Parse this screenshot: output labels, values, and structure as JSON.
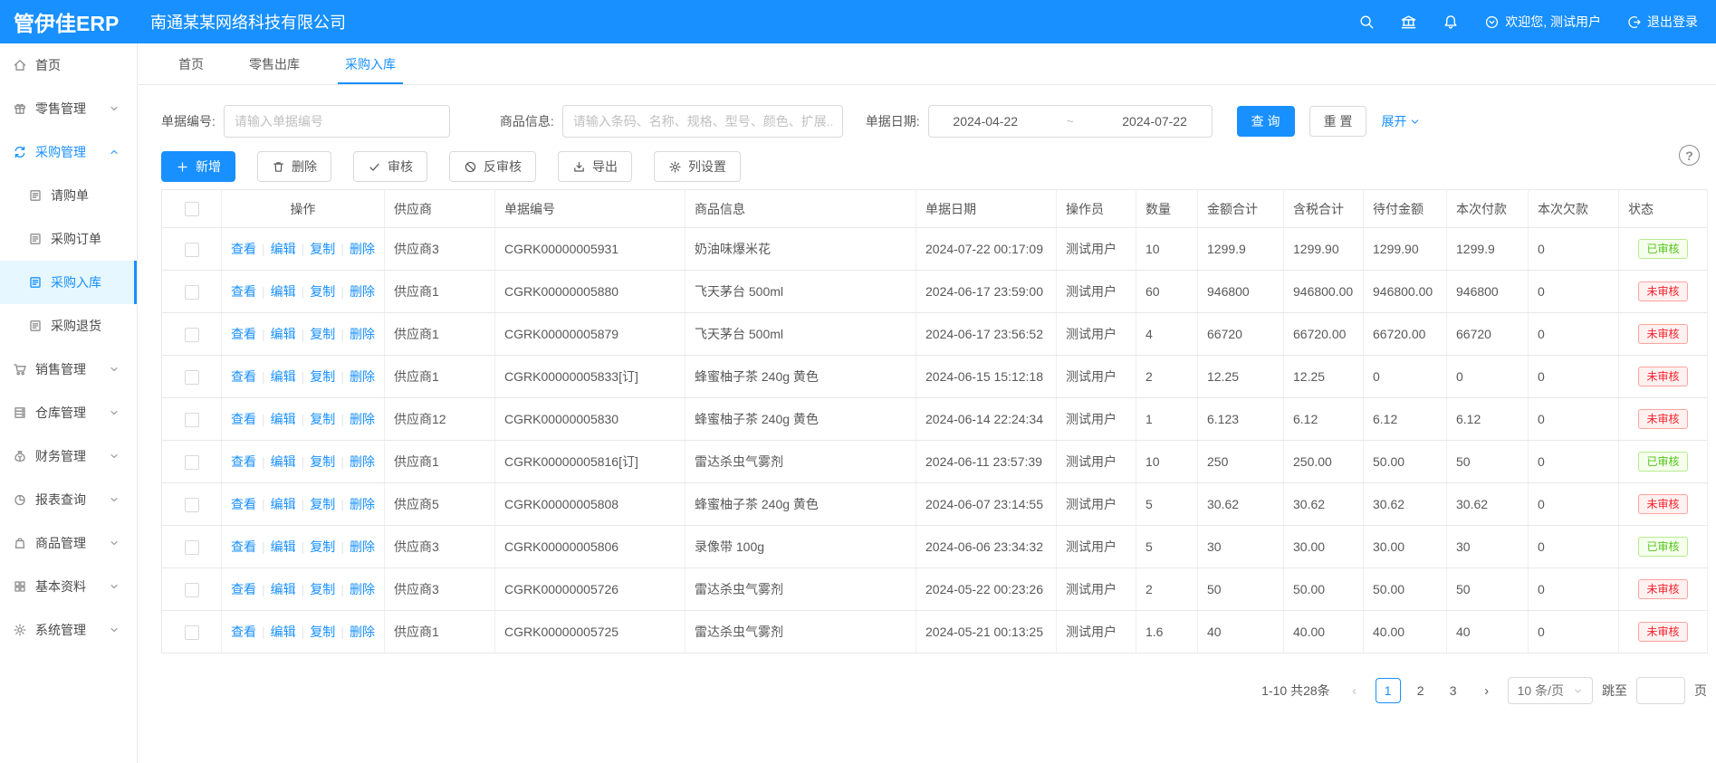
{
  "app": {
    "logo": "管伊佳ERP",
    "company": "南通某某网络科技有限公司",
    "welcome": "欢迎您, 测试用户",
    "logout": "退出登录",
    "help": "?"
  },
  "header_icons": [
    "search",
    "bank",
    "bell"
  ],
  "tabs": [
    {
      "label": "首页",
      "active": false
    },
    {
      "label": "零售出库",
      "active": false
    },
    {
      "label": "采购入库",
      "active": true
    }
  ],
  "sidebar": {
    "items": [
      {
        "label": "首页",
        "icon": "home",
        "type": "top"
      },
      {
        "label": "零售管理",
        "icon": "gift",
        "type": "top",
        "chevron": "down"
      },
      {
        "label": "采购管理",
        "icon": "sync",
        "type": "top",
        "chevron": "up",
        "active": true
      },
      {
        "label": "请购单",
        "icon": "doc",
        "type": "child"
      },
      {
        "label": "采购订单",
        "icon": "doc",
        "type": "child"
      },
      {
        "label": "采购入库",
        "icon": "doc",
        "type": "child",
        "selected": true
      },
      {
        "label": "采购退货",
        "icon": "doc",
        "type": "child"
      },
      {
        "label": "销售管理",
        "icon": "cart",
        "type": "top",
        "chevron": "down"
      },
      {
        "label": "仓库管理",
        "icon": "warehouse",
        "type": "top",
        "chevron": "down"
      },
      {
        "label": "财务管理",
        "icon": "finance",
        "type": "top",
        "chevron": "down"
      },
      {
        "label": "报表查询",
        "icon": "report",
        "type": "top",
        "chevron": "down"
      },
      {
        "label": "商品管理",
        "icon": "goods",
        "type": "top",
        "chevron": "down"
      },
      {
        "label": "基本资料",
        "icon": "grid",
        "type": "top",
        "chevron": "down"
      },
      {
        "label": "系统管理",
        "icon": "gear",
        "type": "top",
        "chevron": "down"
      }
    ]
  },
  "filters": {
    "order_no_label": "单据编号:",
    "order_no_placeholder": "请输入单据编号",
    "product_label": "商品信息:",
    "product_placeholder": "请输入条码、名称、规格、型号、颜色、扩展...",
    "date_label": "单据日期:",
    "date_from": "2024-04-22",
    "date_separator": "~",
    "date_to": "2024-07-22",
    "search_button": "查 询",
    "reset_button": "重 置",
    "expand_link": "展开"
  },
  "toolbar": {
    "buttons": [
      {
        "label": "新增",
        "icon": "plus",
        "primary": true
      },
      {
        "label": "删除",
        "icon": "trash",
        "primary": false
      },
      {
        "label": "审核",
        "icon": "check",
        "primary": false
      },
      {
        "label": "反审核",
        "icon": "ban",
        "primary": false
      },
      {
        "label": "导出",
        "icon": "download",
        "primary": false
      },
      {
        "label": "列设置",
        "icon": "gear",
        "primary": false
      }
    ]
  },
  "table": {
    "columns": [
      "操作",
      "供应商",
      "单据编号",
      "商品信息",
      "单据日期",
      "操作员",
      "数量",
      "金额合计",
      "含税合计",
      "待付金额",
      "本次付款",
      "本次欠款",
      "状态"
    ],
    "action_links": [
      "查看",
      "编辑",
      "复制",
      "删除"
    ],
    "rows": [
      {
        "supplier": "供应商3",
        "order_no": "CGRK00000005931",
        "product": "奶油味爆米花",
        "date": "2024-07-22 00:17:09",
        "operator": "测试用户",
        "qty": "10",
        "amount": "1299.9",
        "tax_total": "1299.90",
        "payable": "1299.90",
        "paid": "1299.9",
        "owed": "0",
        "status": "已审核",
        "status_state": "approved"
      },
      {
        "supplier": "供应商1",
        "order_no": "CGRK00000005880",
        "product": "飞天茅台 500ml",
        "date": "2024-06-17 23:59:00",
        "operator": "测试用户",
        "qty": "60",
        "amount": "946800",
        "tax_total": "946800.00",
        "payable": "946800.00",
        "paid": "946800",
        "owed": "0",
        "status": "未审核",
        "status_state": "pending"
      },
      {
        "supplier": "供应商1",
        "order_no": "CGRK00000005879",
        "product": "飞天茅台 500ml",
        "date": "2024-06-17 23:56:52",
        "operator": "测试用户",
        "qty": "4",
        "amount": "66720",
        "tax_total": "66720.00",
        "payable": "66720.00",
        "paid": "66720",
        "owed": "0",
        "status": "未审核",
        "status_state": "pending"
      },
      {
        "supplier": "供应商1",
        "order_no": "CGRK00000005833[订]",
        "product": "蜂蜜柚子茶 240g 黄色",
        "date": "2024-06-15 15:12:18",
        "operator": "测试用户",
        "qty": "2",
        "amount": "12.25",
        "tax_total": "12.25",
        "payable": "0",
        "paid": "0",
        "owed": "0",
        "status": "未审核",
        "status_state": "pending"
      },
      {
        "supplier": "供应商12",
        "order_no": "CGRK00000005830",
        "product": "蜂蜜柚子茶 240g 黄色",
        "date": "2024-06-14 22:24:34",
        "operator": "测试用户",
        "qty": "1",
        "amount": "6.123",
        "tax_total": "6.12",
        "payable": "6.12",
        "paid": "6.12",
        "owed": "0",
        "status": "未审核",
        "status_state": "pending"
      },
      {
        "supplier": "供应商1",
        "order_no": "CGRK00000005816[订]",
        "product": "雷达杀虫气雾剂",
        "date": "2024-06-11 23:57:39",
        "operator": "测试用户",
        "qty": "10",
        "amount": "250",
        "tax_total": "250.00",
        "payable": "50.00",
        "paid": "50",
        "owed": "0",
        "status": "已审核",
        "status_state": "approved"
      },
      {
        "supplier": "供应商5",
        "order_no": "CGRK00000005808",
        "product": "蜂蜜柚子茶 240g 黄色",
        "date": "2024-06-07 23:14:55",
        "operator": "测试用户",
        "qty": "5",
        "amount": "30.62",
        "tax_total": "30.62",
        "payable": "30.62",
        "paid": "30.62",
        "owed": "0",
        "status": "未审核",
        "status_state": "pending"
      },
      {
        "supplier": "供应商3",
        "order_no": "CGRK00000005806",
        "product": "录像带 100g",
        "date": "2024-06-06 23:34:32",
        "operator": "测试用户",
        "qty": "5",
        "amount": "30",
        "tax_total": "30.00",
        "payable": "30.00",
        "paid": "30",
        "owed": "0",
        "status": "已审核",
        "status_state": "approved"
      },
      {
        "supplier": "供应商3",
        "order_no": "CGRK00000005726",
        "product": "雷达杀虫气雾剂",
        "date": "2024-05-22 00:23:26",
        "operator": "测试用户",
        "qty": "2",
        "amount": "50",
        "tax_total": "50.00",
        "payable": "50.00",
        "paid": "50",
        "owed": "0",
        "status": "未审核",
        "status_state": "pending"
      },
      {
        "supplier": "供应商1",
        "order_no": "CGRK00000005725",
        "product": "雷达杀虫气雾剂",
        "date": "2024-05-21 00:13:25",
        "operator": "测试用户",
        "qty": "1.6",
        "amount": "40",
        "tax_total": "40.00",
        "payable": "40.00",
        "paid": "40",
        "owed": "0",
        "status": "未审核",
        "status_state": "pending"
      }
    ]
  },
  "pagination": {
    "summary": "1-10 共28条",
    "prev": "‹",
    "next": "›",
    "pages": [
      "1",
      "2",
      "3"
    ],
    "current_page": "1",
    "page_size": "10 条/页",
    "jump_label": "跳至",
    "jump_unit": "页"
  },
  "colors": {
    "primary": "#1890ff",
    "approved_green": "#52c41a",
    "pending_red": "#f5222d"
  }
}
